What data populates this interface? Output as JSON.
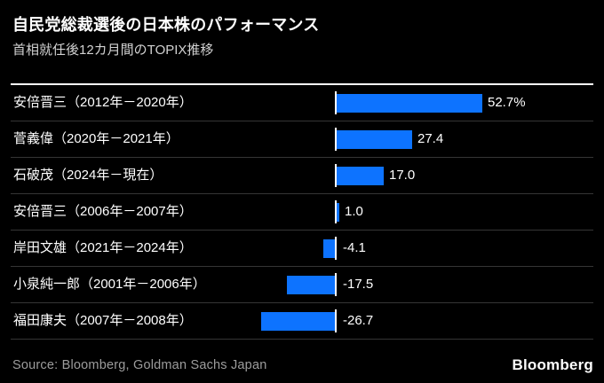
{
  "header": {
    "title": "自民党総裁選後の日本株のパフォーマンス",
    "subtitle": "首相就任後12カ月間のTOPIX推移"
  },
  "chart_data": {
    "type": "bar",
    "orientation": "horizontal",
    "title": "自民党総裁選後の日本株のパフォーマンス",
    "subtitle": "首相就任後12カ月間のTOPIX推移",
    "unit": "%",
    "categories": [
      "安倍晋三（2012年－2020年）",
      "菅義偉（2020年－2021年）",
      "石破茂（2024年－現在）",
      "安倍晋三（2006年－2007年）",
      "岸田文雄（2021年－2024年）",
      "小泉純一郎（2001年－2006年）",
      "福田康夫（2007年－2008年）"
    ],
    "values": [
      52.7,
      27.4,
      17.0,
      1.0,
      -4.1,
      -17.5,
      -26.7
    ],
    "value_labels": [
      "52.7%",
      "27.4",
      "17.0",
      "1.0",
      "-4.1",
      "-17.5",
      "-26.7"
    ],
    "baseline": 0,
    "xlim": [
      -30,
      55
    ],
    "grid": false,
    "legend": "none",
    "bar_color": "#0d73ff"
  },
  "colors": {
    "background": "#000000",
    "bar_blue": "#0d73ff",
    "baseline_white": "#ffffff",
    "separator_gray": "#353535",
    "subtitle_gray": "#d2d2d2",
    "source_gray": "#9c9c9c"
  },
  "footer": {
    "source": "Source: Bloomberg, Goldman Sachs Japan",
    "logo": "Bloomberg"
  }
}
